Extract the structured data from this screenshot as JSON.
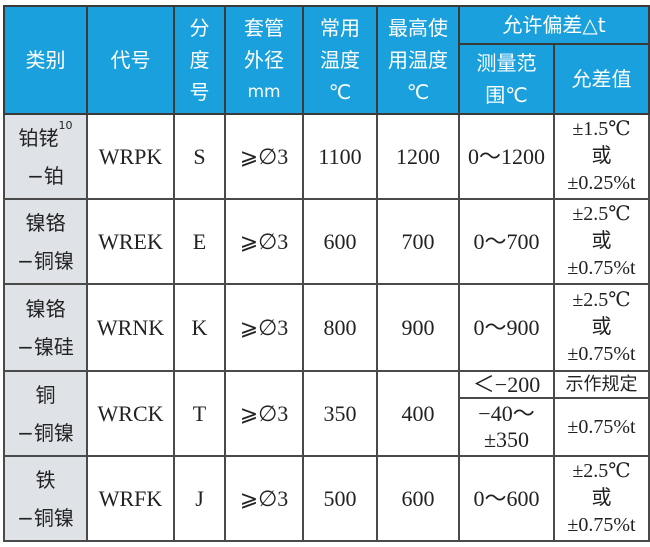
{
  "header": {
    "category": "类别",
    "code": "代号",
    "graduation": [
      "分",
      "度",
      "号"
    ],
    "sheath_dia": [
      "套管",
      "外径",
      "mm"
    ],
    "normal_temp": [
      "常用",
      "温度",
      "℃"
    ],
    "max_temp": [
      "最高使",
      "用温度",
      "℃"
    ],
    "tolerance": "允许偏差△t",
    "range": [
      "测量范",
      "围℃"
    ],
    "tol_value": "允差值"
  },
  "rows": [
    {
      "cat1": "铂铑",
      "cat_sup": "10",
      "cat2": "−铂",
      "code": "WRPK",
      "grad": "S",
      "dia": "⩾∅3",
      "normal": "1100",
      "max": "1200",
      "range": "0～1200",
      "tol": [
        "±1.5℃",
        "或",
        "±0.25%t"
      ]
    },
    {
      "cat1": "镍铬",
      "cat_sup": "",
      "cat2": "−铜镍",
      "code": "WREK",
      "grad": "E",
      "dia": "⩾∅3",
      "normal": "600",
      "max": "700",
      "range": "0～700",
      "tol": [
        "±2.5℃",
        "或",
        "±0.75%t"
      ]
    },
    {
      "cat1": "镍铬",
      "cat_sup": "",
      "cat2": "−镍硅",
      "code": "WRNK",
      "grad": "K",
      "dia": "⩾∅3",
      "normal": "800",
      "max": "900",
      "range": "0～900",
      "tol": [
        "±2.5℃",
        "或",
        "±0.75%t"
      ]
    },
    {
      "cat1": "铜",
      "cat_sup": "",
      "cat2": "−铜镍",
      "code": "WRCK",
      "grad": "T",
      "dia": "⩾∅3",
      "normal": "350",
      "max": "400",
      "range_a": "＜−200",
      "tol_a": "示作规定",
      "range_b": [
        "−40～",
        "±350"
      ],
      "tol_b": "±0.75%t"
    },
    {
      "cat1": "铁",
      "cat_sup": "",
      "cat2": "−铜镍",
      "code": "WRFK",
      "grad": "J",
      "dia": "⩾∅3",
      "normal": "500",
      "max": "600",
      "range": "0～600",
      "tol": [
        "±2.5℃",
        "或",
        "±0.75%t"
      ]
    }
  ],
  "colors": {
    "header_bg": "#1aa0dc",
    "category_bg": "#dfe3e8",
    "border": "#4a4a4a"
  }
}
